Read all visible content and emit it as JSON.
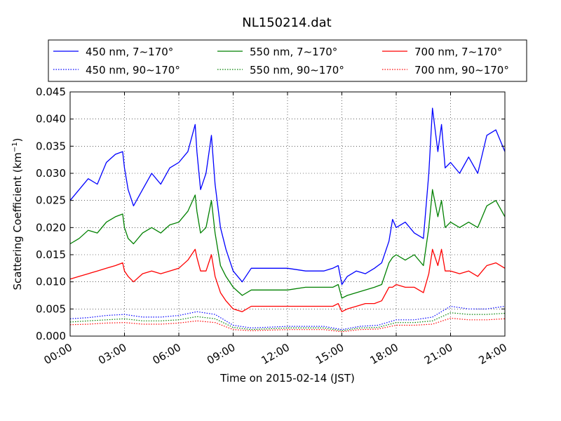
{
  "chart_data": {
    "type": "line",
    "title": "NL150214.dat",
    "xlabel": "Time on 2015-02-14 (JST)",
    "ylabel_main": "Scattering Coefficient (km",
    "ylabel_sup": "−1",
    "ylabel_end": ")",
    "xlim": [
      0,
      24
    ],
    "ylim": [
      0,
      0.045
    ],
    "grid": true,
    "legend_position": "top (above plot, 3 columns)",
    "x_ticks": [
      0,
      3,
      6,
      9,
      12,
      15,
      18,
      21,
      24
    ],
    "x_tick_labels": [
      "00:00",
      "03:00",
      "06:00",
      "09:00",
      "12:00",
      "15:00",
      "18:00",
      "21:00",
      "24:00"
    ],
    "y_ticks": [
      0,
      0.005,
      0.01,
      0.015,
      0.02,
      0.025,
      0.03,
      0.035,
      0.04,
      0.045
    ],
    "y_tick_labels": [
      "0.000",
      "0.005",
      "0.010",
      "0.015",
      "0.020",
      "0.025",
      "0.030",
      "0.035",
      "0.040",
      "0.045"
    ],
    "series": [
      {
        "name": "450 nm, 7∼170°",
        "color": "#0000ff",
        "style": "solid",
        "x": [
          0,
          0.5,
          1,
          1.5,
          2,
          2.5,
          2.9,
          3.0,
          3.2,
          3.5,
          4,
          4.5,
          5,
          5.5,
          6,
          6.5,
          6.9,
          7.0,
          7.2,
          7.5,
          7.8,
          8.0,
          8.3,
          8.6,
          9,
          9.5,
          10,
          11,
          12,
          13,
          14,
          14.5,
          14.8,
          15,
          15.3,
          15.8,
          16.3,
          16.8,
          17.2,
          17.6,
          17.8,
          18.0,
          18.5,
          19.0,
          19.5,
          19.8,
          20.0,
          20.3,
          20.5,
          20.7,
          21,
          21.5,
          22,
          22.5,
          23,
          23.5,
          24
        ],
        "y": [
          0.025,
          0.027,
          0.029,
          0.028,
          0.032,
          0.0335,
          0.034,
          0.031,
          0.027,
          0.024,
          0.027,
          0.03,
          0.028,
          0.031,
          0.032,
          0.034,
          0.039,
          0.034,
          0.027,
          0.03,
          0.037,
          0.028,
          0.02,
          0.016,
          0.012,
          0.01,
          0.0125,
          0.0125,
          0.0125,
          0.012,
          0.012,
          0.0125,
          0.013,
          0.0095,
          0.011,
          0.012,
          0.0115,
          0.0125,
          0.0135,
          0.0175,
          0.0215,
          0.02,
          0.021,
          0.019,
          0.018,
          0.03,
          0.042,
          0.034,
          0.039,
          0.031,
          0.032,
          0.03,
          0.033,
          0.03,
          0.037,
          0.038,
          0.034
        ]
      },
      {
        "name": "550 nm, 7∼170°",
        "color": "#008000",
        "style": "solid",
        "x": [
          0,
          0.5,
          1,
          1.5,
          2,
          2.5,
          2.9,
          3.0,
          3.2,
          3.5,
          4,
          4.5,
          5,
          5.5,
          6,
          6.5,
          6.9,
          7.0,
          7.2,
          7.5,
          7.8,
          8.0,
          8.3,
          8.6,
          9,
          9.5,
          10,
          11,
          12,
          13,
          14,
          14.5,
          14.8,
          15,
          15.3,
          15.8,
          16.3,
          16.8,
          17.2,
          17.6,
          17.8,
          18.0,
          18.5,
          19.0,
          19.5,
          19.8,
          20.0,
          20.3,
          20.5,
          20.7,
          21,
          21.5,
          22,
          22.5,
          23,
          23.5,
          24
        ],
        "y": [
          0.017,
          0.018,
          0.0195,
          0.019,
          0.021,
          0.022,
          0.0225,
          0.02,
          0.018,
          0.017,
          0.019,
          0.02,
          0.019,
          0.0205,
          0.021,
          0.023,
          0.026,
          0.023,
          0.019,
          0.02,
          0.025,
          0.019,
          0.013,
          0.011,
          0.009,
          0.0075,
          0.0085,
          0.0085,
          0.0085,
          0.009,
          0.009,
          0.009,
          0.0095,
          0.007,
          0.0075,
          0.008,
          0.0085,
          0.009,
          0.0095,
          0.0135,
          0.0145,
          0.015,
          0.014,
          0.015,
          0.013,
          0.02,
          0.027,
          0.022,
          0.025,
          0.02,
          0.021,
          0.02,
          0.021,
          0.02,
          0.024,
          0.025,
          0.022
        ]
      },
      {
        "name": "700 nm, 7∼170°",
        "color": "#ff0000",
        "style": "solid",
        "x": [
          0,
          0.5,
          1,
          1.5,
          2,
          2.5,
          2.9,
          3.0,
          3.2,
          3.5,
          4,
          4.5,
          5,
          5.5,
          6,
          6.5,
          6.9,
          7.0,
          7.2,
          7.5,
          7.8,
          8.0,
          8.3,
          8.6,
          9,
          9.5,
          10,
          11,
          12,
          13,
          14,
          14.5,
          14.8,
          15,
          15.3,
          15.8,
          16.3,
          16.8,
          17.2,
          17.6,
          17.8,
          18.0,
          18.5,
          19.0,
          19.5,
          19.8,
          20.0,
          20.3,
          20.5,
          20.7,
          21,
          21.5,
          22,
          22.5,
          23,
          23.5,
          24
        ],
        "y": [
          0.0105,
          0.011,
          0.0115,
          0.012,
          0.0125,
          0.013,
          0.0135,
          0.012,
          0.011,
          0.01,
          0.0115,
          0.012,
          0.0115,
          0.012,
          0.0125,
          0.014,
          0.016,
          0.0145,
          0.012,
          0.012,
          0.015,
          0.011,
          0.008,
          0.0065,
          0.005,
          0.0045,
          0.0055,
          0.0055,
          0.0055,
          0.0055,
          0.0055,
          0.0055,
          0.006,
          0.0045,
          0.005,
          0.0055,
          0.006,
          0.006,
          0.0065,
          0.009,
          0.009,
          0.0095,
          0.009,
          0.009,
          0.008,
          0.0115,
          0.016,
          0.013,
          0.016,
          0.012,
          0.012,
          0.0115,
          0.012,
          0.011,
          0.013,
          0.0135,
          0.0125
        ]
      },
      {
        "name": "450 nm, 90∼170°",
        "color": "#0000ff",
        "style": "dotted",
        "x": [
          0,
          1,
          2,
          3,
          4,
          5,
          6,
          7,
          8,
          9,
          10,
          12,
          14,
          15,
          16,
          17,
          18,
          19,
          20,
          21,
          22,
          23,
          24
        ],
        "y": [
          0.0032,
          0.0034,
          0.0038,
          0.004,
          0.0035,
          0.0035,
          0.0038,
          0.0045,
          0.004,
          0.002,
          0.0015,
          0.0018,
          0.0018,
          0.0012,
          0.0018,
          0.002,
          0.003,
          0.003,
          0.0035,
          0.0055,
          0.005,
          0.005,
          0.0055
        ]
      },
      {
        "name": "550 nm, 90∼170°",
        "color": "#008000",
        "style": "dotted",
        "x": [
          0,
          1,
          2,
          3,
          4,
          5,
          6,
          7,
          8,
          9,
          10,
          12,
          14,
          15,
          16,
          17,
          18,
          19,
          20,
          21,
          22,
          23,
          24
        ],
        "y": [
          0.0026,
          0.0028,
          0.003,
          0.0032,
          0.0028,
          0.0028,
          0.003,
          0.0036,
          0.0032,
          0.0016,
          0.0012,
          0.0015,
          0.0015,
          0.001,
          0.0015,
          0.0016,
          0.0025,
          0.0025,
          0.0028,
          0.0043,
          0.004,
          0.004,
          0.0042
        ]
      },
      {
        "name": "700 nm, 90∼170°",
        "color": "#ff0000",
        "style": "dotted",
        "x": [
          0,
          1,
          2,
          3,
          4,
          5,
          6,
          7,
          8,
          9,
          10,
          12,
          14,
          15,
          16,
          17,
          18,
          19,
          20,
          21,
          22,
          23,
          24
        ],
        "y": [
          0.0021,
          0.0022,
          0.0024,
          0.0025,
          0.0022,
          0.0022,
          0.0024,
          0.0028,
          0.0025,
          0.0012,
          0.001,
          0.0012,
          0.0012,
          0.0008,
          0.0012,
          0.0013,
          0.002,
          0.002,
          0.0022,
          0.0033,
          0.003,
          0.003,
          0.0032
        ]
      }
    ]
  }
}
